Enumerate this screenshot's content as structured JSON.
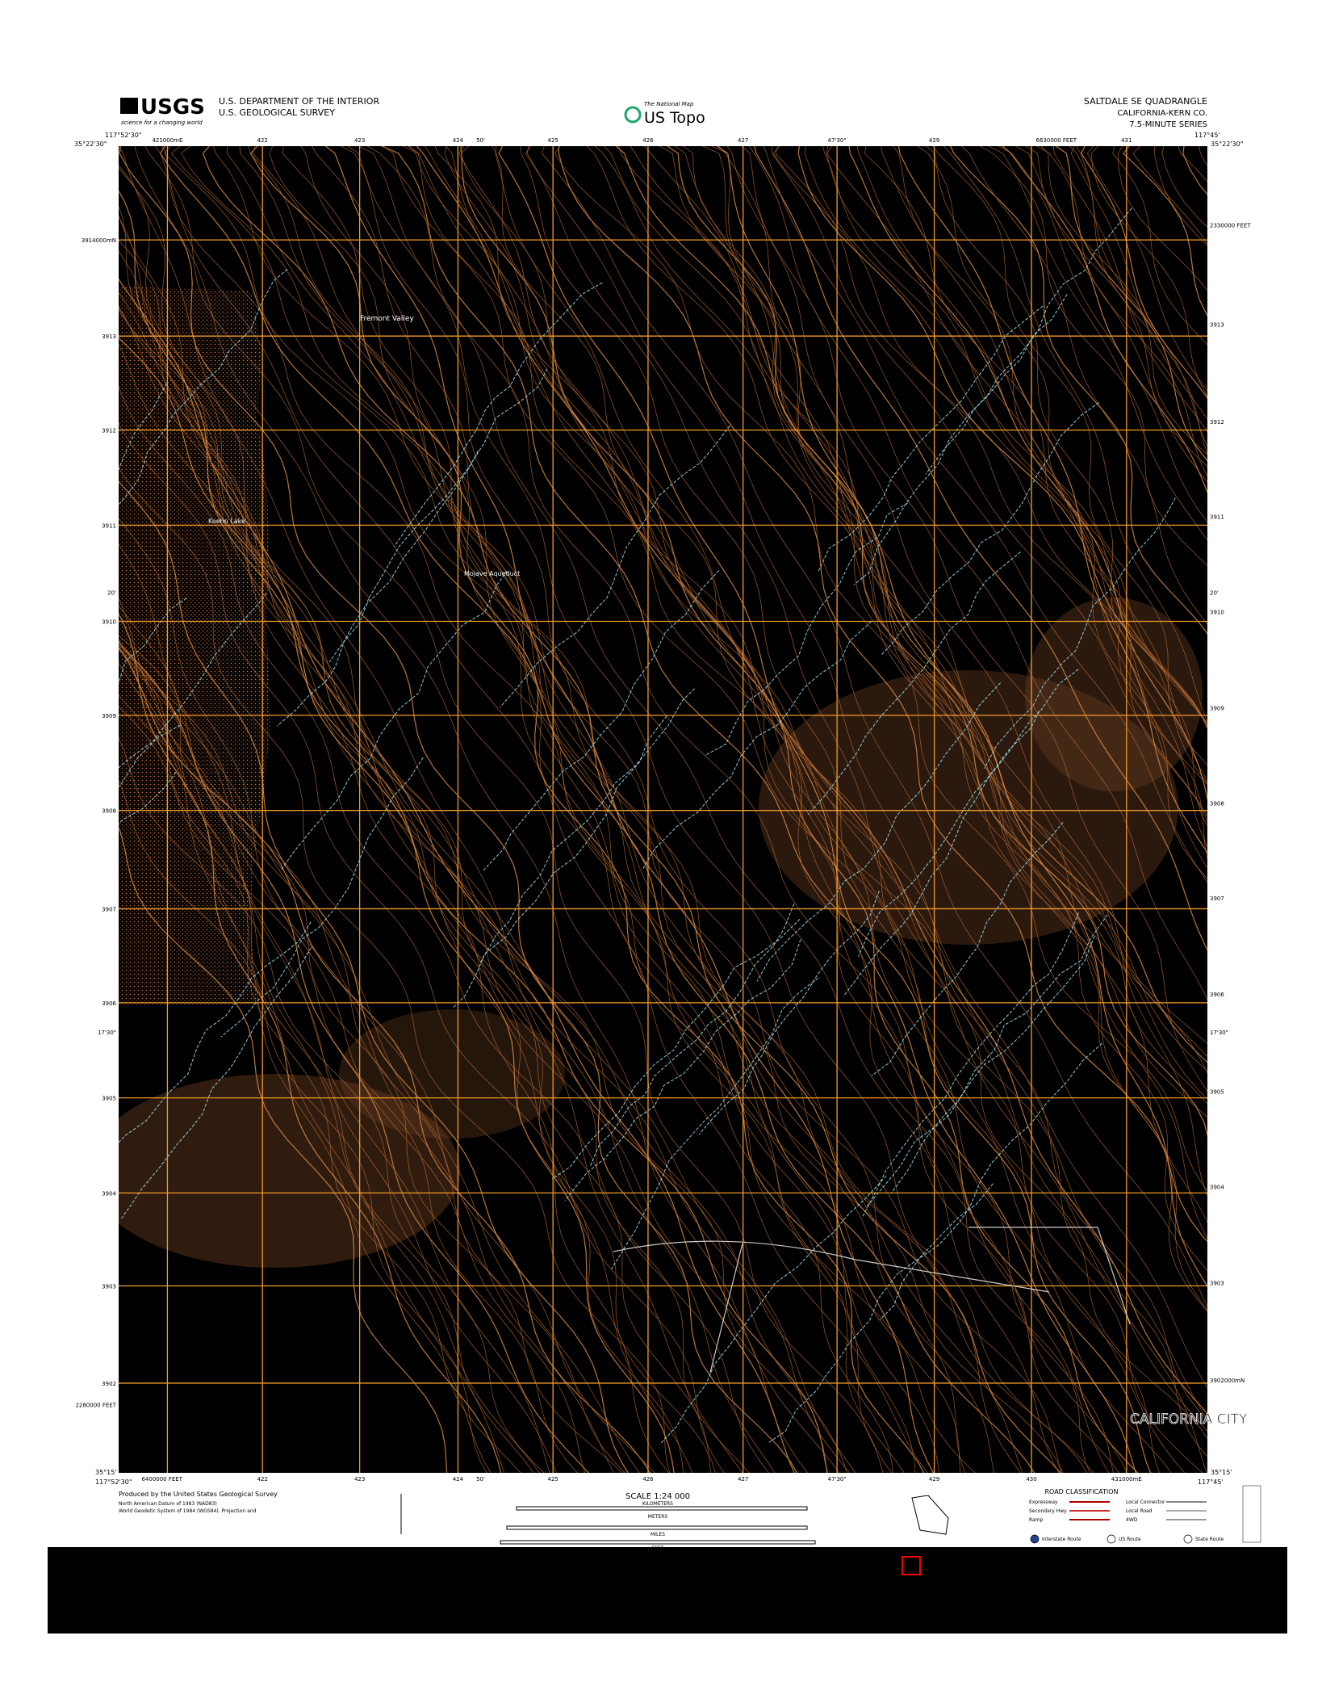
{
  "header": {
    "agency_logo": "USGS",
    "agency_tagline": "science for a changing world",
    "department": "U.S. DEPARTMENT OF THE INTERIOR",
    "survey": "U.S. GEOLOGICAL SURVEY",
    "program_small": "The National Map",
    "program": "US Topo",
    "quadrangle": "SALTDALE SE QUADRANGLE",
    "state_county": "CALIFORNIA-KERN CO.",
    "series": "7.5-MINUTE SERIES"
  },
  "corners": {
    "top_left_lon": "117°52'30\"",
    "top_left_lat": "35°22'30\"",
    "top_right_lon": "117°45'",
    "top_right_lat": "35°22'30\"",
    "bottom_left_lon": "117°52'30\"",
    "bottom_left_lat": "35°15'",
    "bottom_right_lon": "117°45'",
    "bottom_right_lat": "35°15'"
  },
  "grid_labels": {
    "top": [
      "421000mE",
      "422",
      "423",
      "424",
      "50'",
      "425",
      "426",
      "427",
      "47'30\"",
      "429",
      "6630000 FEET",
      "431"
    ],
    "bottom": [
      "6400000 FEET",
      "422",
      "423",
      "424",
      "50'",
      "425",
      "426",
      "427",
      "47'30\"",
      "429",
      "430",
      "431000mE"
    ],
    "left": [
      "3914000mN",
      "3913",
      "3912",
      "3911",
      "20'",
      "3910",
      "3909",
      "3908",
      "3907",
      "3906",
      "17'30\"",
      "3905",
      "3904",
      "3903",
      "3902",
      "2280000 FEET"
    ],
    "right": [
      "2330000 FEET",
      "3913",
      "3912",
      "3911",
      "20'",
      "3910",
      "3909",
      "3908",
      "3907",
      "3906",
      "17'30\"",
      "3905",
      "3904",
      "3903",
      "3902000mN"
    ]
  },
  "places": [
    "Fremont Valley",
    "Koehn Lake",
    "Mojave Aqueduct",
    "CALIFORNIA CITY"
  ],
  "footer": {
    "producer": "Produced by the United States Geological Survey",
    "datum": "North American Datum of 1983 (NAD83)",
    "projection": "World Geodetic System of 1984 (WGS84). Projection and",
    "scale": "SCALE 1:24 000",
    "units": [
      "KILOMETERS",
      "METERS",
      "MILES",
      "FEET"
    ],
    "road_title": "ROAD CLASSIFICATION",
    "roads": [
      "Expressway",
      "Secondary Hwy",
      "Ramp",
      "Local Connector",
      "Local Road",
      "4WD"
    ],
    "routes": [
      "Interstate Route",
      "US Route",
      "State Route"
    ]
  }
}
